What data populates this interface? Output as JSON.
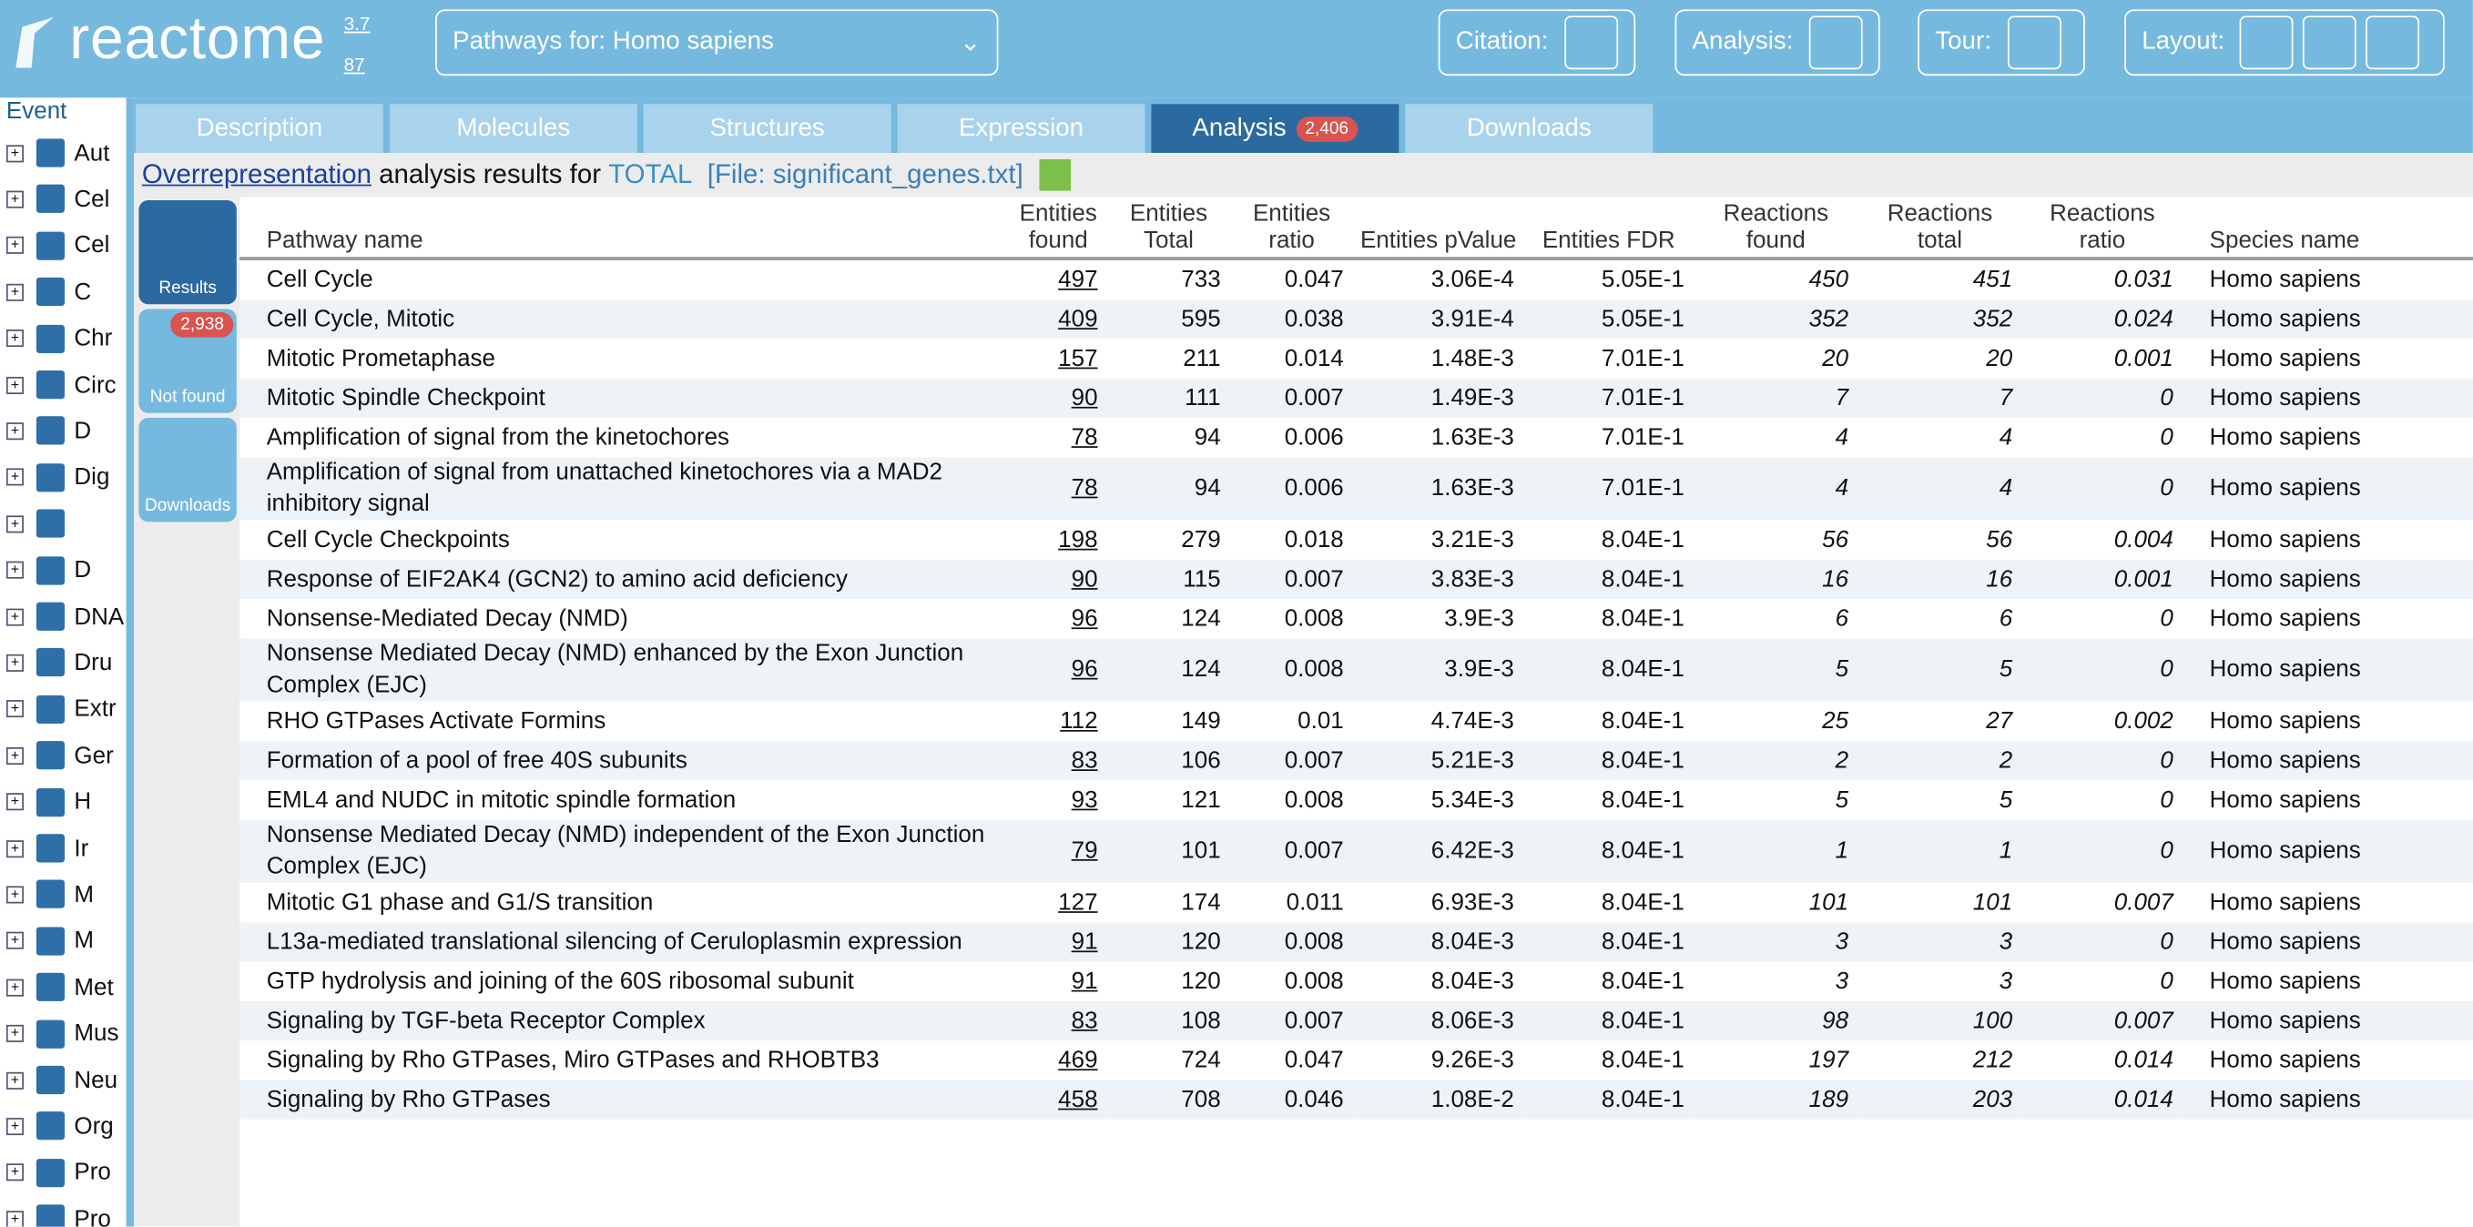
{
  "header": {
    "logo": "reactome",
    "version": "3.7",
    "count": "87",
    "species_label": "Pathways for:",
    "species": "Homo sapiens",
    "citation": "Citation:",
    "analysis": "Analysis:",
    "tour": "Tour:",
    "layout": "Layout:"
  },
  "tree": {
    "title": "Event",
    "items": [
      "Aut",
      "Cel",
      "Cel",
      "C",
      "Chr",
      "Circ",
      "D",
      "Dig",
      "",
      "D",
      "DNA",
      "Dru",
      "Extr",
      "Ger",
      "H",
      "Ir",
      "M",
      "M",
      "Met",
      "Mus",
      "Neu",
      "Org",
      "Pro",
      "Pro"
    ]
  },
  "tabs": [
    {
      "label": "Description"
    },
    {
      "label": "Molecules"
    },
    {
      "label": "Structures"
    },
    {
      "label": "Expression"
    },
    {
      "label": "Analysis",
      "badge": "2,406"
    },
    {
      "label": "Downloads"
    }
  ],
  "results": {
    "method": "Overrepresentation",
    "text": "analysis results for",
    "token": "TOTAL",
    "file": "[File: significant_genes.txt]"
  },
  "side": [
    {
      "label": "Results"
    },
    {
      "label": "Not found",
      "badge": "2,938"
    },
    {
      "label": "Downloads"
    }
  ],
  "table": {
    "columns": [
      "Pathway name",
      "Entities found",
      "Entities Total",
      "Entities ratio",
      "Entities pValue",
      "Entities FDR",
      "Reactions found",
      "Reactions total",
      "Reactions ratio",
      "Species name"
    ],
    "rows": [
      [
        "Cell Cycle",
        "497",
        "733",
        "0.047",
        "3.06E-4",
        "5.05E-1",
        "450",
        "451",
        "0.031",
        "Homo sapiens"
      ],
      [
        "Cell Cycle, Mitotic",
        "409",
        "595",
        "0.038",
        "3.91E-4",
        "5.05E-1",
        "352",
        "352",
        "0.024",
        "Homo sapiens"
      ],
      [
        "Mitotic Prometaphase",
        "157",
        "211",
        "0.014",
        "1.48E-3",
        "7.01E-1",
        "20",
        "20",
        "0.001",
        "Homo sapiens"
      ],
      [
        "Mitotic Spindle Checkpoint",
        "90",
        "111",
        "0.007",
        "1.49E-3",
        "7.01E-1",
        "7",
        "7",
        "0",
        "Homo sapiens"
      ],
      [
        "Amplification of signal from the kinetochores",
        "78",
        "94",
        "0.006",
        "1.63E-3",
        "7.01E-1",
        "4",
        "4",
        "0",
        "Homo sapiens"
      ],
      [
        "Amplification of signal from unattached kinetochores via a MAD2 inhibitory signal",
        "78",
        "94",
        "0.006",
        "1.63E-3",
        "7.01E-1",
        "4",
        "4",
        "0",
        "Homo sapiens"
      ],
      [
        "Cell Cycle Checkpoints",
        "198",
        "279",
        "0.018",
        "3.21E-3",
        "8.04E-1",
        "56",
        "56",
        "0.004",
        "Homo sapiens"
      ],
      [
        "Response of EIF2AK4 (GCN2) to amino acid deficiency",
        "90",
        "115",
        "0.007",
        "3.83E-3",
        "8.04E-1",
        "16",
        "16",
        "0.001",
        "Homo sapiens"
      ],
      [
        "Nonsense-Mediated Decay (NMD)",
        "96",
        "124",
        "0.008",
        "3.9E-3",
        "8.04E-1",
        "6",
        "6",
        "0",
        "Homo sapiens"
      ],
      [
        "Nonsense Mediated Decay (NMD) enhanced by the Exon Junction Complex (EJC)",
        "96",
        "124",
        "0.008",
        "3.9E-3",
        "8.04E-1",
        "5",
        "5",
        "0",
        "Homo sapiens"
      ],
      [
        "RHO GTPases Activate Formins",
        "112",
        "149",
        "0.01",
        "4.74E-3",
        "8.04E-1",
        "25",
        "27",
        "0.002",
        "Homo sapiens"
      ],
      [
        "Formation of a pool of free 40S subunits",
        "83",
        "106",
        "0.007",
        "5.21E-3",
        "8.04E-1",
        "2",
        "2",
        "0",
        "Homo sapiens"
      ],
      [
        "EML4 and NUDC in mitotic spindle formation",
        "93",
        "121",
        "0.008",
        "5.34E-3",
        "8.04E-1",
        "5",
        "5",
        "0",
        "Homo sapiens"
      ],
      [
        "Nonsense Mediated Decay (NMD) independent of the Exon Junction Complex (EJC)",
        "79",
        "101",
        "0.007",
        "6.42E-3",
        "8.04E-1",
        "1",
        "1",
        "0",
        "Homo sapiens"
      ],
      [
        "Mitotic G1 phase and G1/S transition",
        "127",
        "174",
        "0.011",
        "6.93E-3",
        "8.04E-1",
        "101",
        "101",
        "0.007",
        "Homo sapiens"
      ],
      [
        "L13a-mediated translational silencing of Ceruloplasmin expression",
        "91",
        "120",
        "0.008",
        "8.04E-3",
        "8.04E-1",
        "3",
        "3",
        "0",
        "Homo sapiens"
      ],
      [
        "GTP hydrolysis and joining of the 60S ribosomal subunit",
        "91",
        "120",
        "0.008",
        "8.04E-3",
        "8.04E-1",
        "3",
        "3",
        "0",
        "Homo sapiens"
      ],
      [
        "Signaling by TGF-beta Receptor Complex",
        "83",
        "108",
        "0.007",
        "8.06E-3",
        "8.04E-1",
        "98",
        "100",
        "0.007",
        "Homo sapiens"
      ],
      [
        "Signaling by Rho GTPases, Miro GTPases and RHOBTB3",
        "469",
        "724",
        "0.047",
        "9.26E-3",
        "8.04E-1",
        "197",
        "212",
        "0.014",
        "Homo sapiens"
      ],
      [
        "Signaling by Rho GTPases",
        "458",
        "708",
        "0.046",
        "1.08E-2",
        "8.04E-1",
        "189",
        "203",
        "0.014",
        "Homo sapiens"
      ]
    ]
  }
}
